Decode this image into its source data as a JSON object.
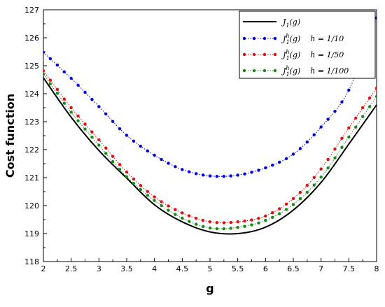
{
  "chart_data": {
    "type": "line",
    "title": "",
    "xlabel": "g",
    "ylabel": "Cost function",
    "xlim": [
      2,
      8
    ],
    "ylim": [
      118,
      127
    ],
    "xticks": [
      "2",
      "2.5",
      "3",
      "3.5",
      "4",
      "4.5",
      "5",
      "5.5",
      "6",
      "6.5",
      "7",
      "7.5",
      "8"
    ],
    "yticks": [
      "118",
      "119",
      "120",
      "121",
      "122",
      "123",
      "124",
      "125",
      "126",
      "127"
    ],
    "grid": false,
    "legend_position": "top-right",
    "x": [
      2.0,
      2.5,
      3.0,
      3.5,
      4.0,
      4.5,
      5.0,
      5.5,
      6.0,
      6.5,
      7.0,
      7.5,
      8.0
    ],
    "series": [
      {
        "name": "J_1(g)",
        "style": "solid",
        "color": "#000000",
        "y": [
          124.57,
          123.16,
          121.97,
          120.98,
          120.03,
          119.42,
          119.06,
          119.0,
          119.23,
          119.84,
          120.83,
          122.2,
          123.6
        ]
      },
      {
        "name": "J_1^h(g)",
        "h_label": "h = 1/10",
        "style": "dotted-marker",
        "color": "#0000dd",
        "y": [
          125.48,
          124.55,
          123.54,
          122.51,
          121.8,
          121.29,
          121.06,
          121.09,
          121.35,
          121.84,
          122.81,
          124.13,
          126.71
        ]
      },
      {
        "name": "J_1^h(g)",
        "h_label": "h = 1/50",
        "style": "dotted-marker",
        "color": "#dd1111",
        "y": [
          124.82,
          123.5,
          122.35,
          121.2,
          120.31,
          119.74,
          119.42,
          119.42,
          119.63,
          120.25,
          121.31,
          122.78,
          124.2
        ]
      },
      {
        "name": "J_1^h(g)",
        "h_label": "h = 1/100",
        "style": "dotted-marker",
        "color": "#1a8a1a",
        "y": [
          124.7,
          123.34,
          122.16,
          121.03,
          120.18,
          119.55,
          119.2,
          119.22,
          119.47,
          120.04,
          121.02,
          122.45,
          123.9
        ]
      }
    ]
  }
}
